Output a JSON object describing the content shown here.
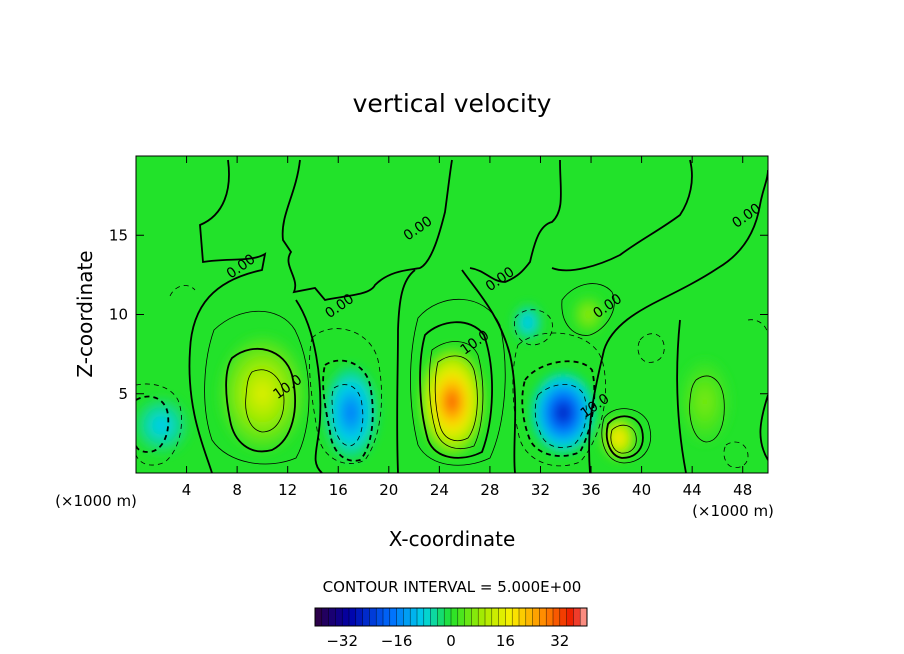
{
  "chart_data": {
    "type": "heatmap",
    "title": "vertical velocity",
    "xlabel": "X-coordinate",
    "ylabel": "Z-coordinate",
    "x_unit": "(×1000 m)",
    "x_unit_right": "(×1000 m)",
    "xlim": [
      0,
      50
    ],
    "ylim": [
      0,
      20
    ],
    "xticks": [
      "4",
      "8",
      "12",
      "16",
      "20",
      "24",
      "28",
      "32",
      "36",
      "40",
      "44",
      "48"
    ],
    "yticks": [
      "5",
      "10",
      "15"
    ],
    "contour_interval_text": "CONTOUR INTERVAL = 5.000E+00",
    "colorbar": {
      "range": [
        -40,
        40
      ],
      "tick_labels": [
        "−32",
        "−16",
        "0",
        "16",
        "32"
      ],
      "tick_values": [
        -32,
        -16,
        0,
        16,
        32
      ]
    },
    "contour_labels": [
      {
        "text": "0.00",
        "x": 8.5,
        "z": 12.8
      },
      {
        "text": "0.00",
        "x": 16.3,
        "z": 10.3
      },
      {
        "text": "0.00",
        "x": 22.5,
        "z": 15.2
      },
      {
        "text": "0.00",
        "x": 29.0,
        "z": 12.0
      },
      {
        "text": "0.00",
        "x": 37.5,
        "z": 10.3
      },
      {
        "text": "0.00",
        "x": 48.5,
        "z": 16.0
      },
      {
        "text": "10.0",
        "x": 12.2,
        "z": 5.2
      },
      {
        "text": "10.0",
        "x": 27.0,
        "z": 8.0
      },
      {
        "text": "10.0",
        "x": 36.5,
        "z": 4.0
      }
    ],
    "cells": [
      {
        "x": 10.0,
        "z": 5.0,
        "sx": 3.4,
        "sz": 3.6,
        "value": 14
      },
      {
        "x": 25.0,
        "z": 4.5,
        "sx": 2.6,
        "sz": 3.4,
        "value": 30
      },
      {
        "x": 38.2,
        "z": 2.2,
        "sx": 1.4,
        "sz": 1.4,
        "value": 20
      },
      {
        "x": 2.0,
        "z": 3.0,
        "sx": 2.2,
        "sz": 1.8,
        "value": -9
      },
      {
        "x": 17.0,
        "z": 3.8,
        "sx": 2.2,
        "sz": 3.0,
        "value": -16
      },
      {
        "x": 33.8,
        "z": 3.8,
        "sx": 2.6,
        "sz": 2.6,
        "value": -26
      },
      {
        "x": 31.0,
        "z": 9.5,
        "sx": 1.2,
        "sz": 1.2,
        "value": -10
      },
      {
        "x": 35.8,
        "z": 10.0,
        "sx": 1.3,
        "sz": 1.2,
        "value": 8
      },
      {
        "x": 45.0,
        "z": 4.5,
        "sx": 2.0,
        "sz": 2.6,
        "value": 6
      }
    ]
  }
}
